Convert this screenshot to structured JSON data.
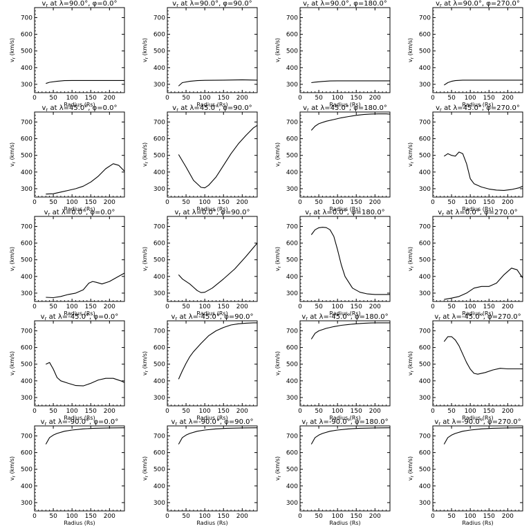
{
  "figure": {
    "xlabel": "Radius (Rs)",
    "ylabel": "v_r (km/s)",
    "xlim": [
      0,
      240
    ],
    "ylim": [
      250,
      760
    ],
    "xticks": [
      0,
      50,
      100,
      150,
      200
    ],
    "yticks": [
      300,
      400,
      500,
      600,
      700
    ],
    "grid": false,
    "line_color": "#000000"
  },
  "chart_data": [
    {
      "type": "line",
      "title": "v_r at λ=90.0°, φ=0.0°",
      "lambda": "90.0",
      "phi": "0.0",
      "x": [
        30,
        40,
        60,
        80,
        100,
        150,
        200,
        240
      ],
      "y": [
        305,
        312,
        318,
        322,
        323,
        323,
        323,
        323
      ]
    },
    {
      "type": "line",
      "title": "v_r at λ=90.0°, φ=90.0°",
      "lambda": "90.0",
      "phi": "90.0",
      "x": [
        30,
        40,
        60,
        80,
        100,
        150,
        200,
        240
      ],
      "y": [
        290,
        310,
        318,
        322,
        324,
        325,
        327,
        325
      ]
    },
    {
      "type": "line",
      "title": "v_r at λ=90.0°, φ=180.0°",
      "lambda": "90.0",
      "phi": "180.0",
      "x": [
        30,
        40,
        60,
        80,
        100,
        150,
        200,
        240
      ],
      "y": [
        310,
        313,
        317,
        320,
        321,
        321,
        321,
        321
      ]
    },
    {
      "type": "line",
      "title": "v_r at λ=90.0°, φ=270.0°",
      "lambda": "90.0",
      "phi": "270.0",
      "x": [
        30,
        40,
        50,
        60,
        80,
        100,
        150,
        200,
        240
      ],
      "y": [
        295,
        310,
        318,
        322,
        325,
        325,
        325,
        325,
        325
      ]
    },
    {
      "type": "line",
      "title": "v_r at λ=45.0°, φ=0.0°",
      "lambda": "45.0",
      "phi": "0.0",
      "x": [
        30,
        50,
        70,
        90,
        110,
        130,
        150,
        170,
        190,
        210,
        225,
        240
      ],
      "y": [
        268,
        270,
        280,
        290,
        300,
        315,
        340,
        375,
        420,
        450,
        440,
        405
      ]
    },
    {
      "type": "line",
      "title": "v_r at λ=45.0°, φ=90.0°",
      "lambda": "45.0",
      "phi": "90.0",
      "x": [
        30,
        50,
        70,
        90,
        100,
        110,
        130,
        150,
        170,
        190,
        210,
        230,
        240
      ],
      "y": [
        505,
        430,
        350,
        308,
        305,
        320,
        370,
        440,
        510,
        570,
        620,
        665,
        680
      ]
    },
    {
      "type": "line",
      "title": "v_r at λ=45.0°, φ=180.0°",
      "lambda": "45.0",
      "phi": "180.0",
      "x": [
        30,
        40,
        50,
        70,
        90,
        110,
        130,
        150,
        170,
        190,
        210,
        230,
        240
      ],
      "y": [
        650,
        675,
        690,
        705,
        715,
        725,
        733,
        740,
        745,
        748,
        749,
        749,
        747
      ]
    },
    {
      "type": "line",
      "title": "v_r at λ=45.0°, φ=270.0°",
      "lambda": "45.0",
      "phi": "270.0",
      "x": [
        30,
        40,
        50,
        60,
        70,
        80,
        90,
        100,
        110,
        130,
        150,
        170,
        190,
        210,
        230,
        240
      ],
      "y": [
        495,
        510,
        500,
        495,
        520,
        510,
        450,
        360,
        330,
        310,
        298,
        292,
        290,
        295,
        305,
        315
      ]
    },
    {
      "type": "line",
      "title": "v_r at λ=0.0°, φ=0.0°",
      "lambda": "0.0",
      "phi": "0.0",
      "x": [
        30,
        50,
        70,
        90,
        110,
        130,
        145,
        155,
        165,
        180,
        200,
        220,
        240
      ],
      "y": [
        275,
        273,
        280,
        292,
        300,
        320,
        360,
        370,
        365,
        355,
        370,
        395,
        420
      ]
    },
    {
      "type": "line",
      "title": "v_r at λ=0.0°, φ=90.0°",
      "lambda": "0.0",
      "phi": "90.0",
      "x": [
        30,
        40,
        50,
        60,
        70,
        80,
        90,
        100,
        120,
        150,
        180,
        210,
        240
      ],
      "y": [
        410,
        385,
        370,
        355,
        335,
        315,
        303,
        305,
        330,
        385,
        445,
        520,
        600
      ]
    },
    {
      "type": "line",
      "title": "v_r at λ=0.0°, φ=180.0°",
      "lambda": "0.0",
      "phi": "180.0",
      "x": [
        30,
        40,
        50,
        60,
        70,
        80,
        90,
        100,
        110,
        120,
        140,
        160,
        180,
        200,
        220,
        240
      ],
      "y": [
        650,
        680,
        692,
        695,
        693,
        680,
        640,
        560,
        470,
        400,
        330,
        305,
        295,
        292,
        292,
        292
      ]
    },
    {
      "type": "line",
      "title": "v_r at λ=0.0°, φ=270.0°",
      "lambda": "0.0",
      "phi": "270.0",
      "x": [
        30,
        50,
        70,
        90,
        110,
        130,
        150,
        170,
        190,
        210,
        225,
        240
      ],
      "y": [
        262,
        270,
        280,
        300,
        330,
        340,
        340,
        360,
        410,
        450,
        440,
        390
      ]
    },
    {
      "type": "line",
      "title": "v_r at λ=-45.0°, φ=0.0°",
      "lambda": "-45.0",
      "phi": "0.0",
      "x": [
        30,
        40,
        50,
        60,
        70,
        90,
        110,
        130,
        150,
        170,
        190,
        210,
        230,
        240
      ],
      "y": [
        500,
        510,
        470,
        420,
        400,
        385,
        372,
        370,
        385,
        405,
        415,
        415,
        400,
        390
      ]
    },
    {
      "type": "line",
      "title": "v_r at λ=-45.0°, φ=90.0°",
      "lambda": "-45.0",
      "phi": "90.0",
      "x": [
        30,
        40,
        50,
        60,
        70,
        90,
        110,
        130,
        150,
        170,
        190,
        210,
        230,
        240
      ],
      "y": [
        410,
        460,
        505,
        545,
        575,
        625,
        670,
        700,
        720,
        735,
        742,
        746,
        748,
        748
      ]
    },
    {
      "type": "line",
      "title": "v_r at λ=-45.0°, φ=180.0°",
      "lambda": "-45.0",
      "phi": "180.0",
      "x": [
        30,
        40,
        50,
        70,
        90,
        110,
        130,
        150,
        170,
        190,
        210,
        230,
        240
      ],
      "y": [
        650,
        685,
        700,
        715,
        725,
        733,
        738,
        742,
        745,
        747,
        748,
        748,
        748
      ]
    },
    {
      "type": "line",
      "title": "v_r at λ=-45.0°, φ=270.0°",
      "lambda": "-45.0",
      "phi": "270.0",
      "x": [
        30,
        40,
        50,
        60,
        70,
        80,
        90,
        100,
        110,
        120,
        140,
        160,
        180,
        200,
        220,
        240
      ],
      "y": [
        635,
        665,
        665,
        645,
        610,
        560,
        510,
        470,
        445,
        440,
        450,
        465,
        475,
        472,
        472,
        472
      ]
    },
    {
      "type": "line",
      "title": "v_r at λ=-90.0°, φ=0.0°",
      "lambda": "-90.0",
      "phi": "0.0",
      "x": [
        30,
        40,
        50,
        60,
        80,
        100,
        130,
        160,
        200,
        240
      ],
      "y": [
        650,
        690,
        705,
        715,
        728,
        735,
        742,
        746,
        748,
        749
      ]
    },
    {
      "type": "line",
      "title": "v_r at λ=-90.0°, φ=90.0°",
      "lambda": "-90.0",
      "phi": "90.0",
      "x": [
        30,
        40,
        50,
        60,
        80,
        100,
        130,
        160,
        200,
        240
      ],
      "y": [
        650,
        690,
        705,
        715,
        728,
        735,
        742,
        746,
        748,
        749
      ]
    },
    {
      "type": "line",
      "title": "v_r at λ=-90.0°, φ=180.0°",
      "lambda": "-90.0",
      "phi": "180.0",
      "x": [
        30,
        40,
        50,
        60,
        80,
        100,
        130,
        160,
        200,
        240
      ],
      "y": [
        650,
        690,
        705,
        715,
        728,
        735,
        742,
        746,
        748,
        749
      ]
    },
    {
      "type": "line",
      "title": "v_r at λ=-90.0°, φ=270.0°",
      "lambda": "-90.0",
      "phi": "270.0",
      "x": [
        30,
        40,
        50,
        60,
        80,
        100,
        130,
        160,
        200,
        240
      ],
      "y": [
        650,
        690,
        705,
        715,
        728,
        735,
        742,
        746,
        748,
        749
      ]
    }
  ]
}
